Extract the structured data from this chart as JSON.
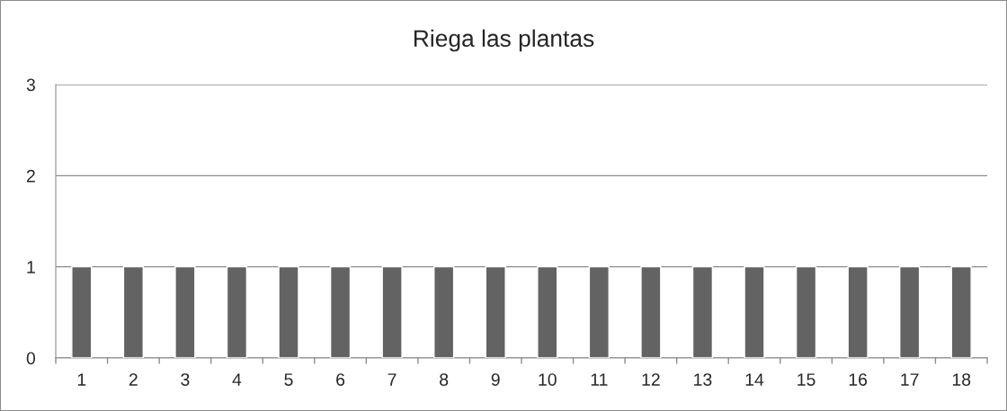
{
  "chart_data": {
    "type": "bar",
    "title": "Riega las plantas",
    "categories": [
      "1",
      "2",
      "3",
      "4",
      "5",
      "6",
      "7",
      "8",
      "9",
      "10",
      "11",
      "12",
      "13",
      "14",
      "15",
      "16",
      "17",
      "18"
    ],
    "values": [
      1,
      1,
      1,
      1,
      1,
      1,
      1,
      1,
      1,
      1,
      1,
      1,
      1,
      1,
      1,
      1,
      1,
      1
    ],
    "color": "#636363",
    "ylim": [
      0,
      3
    ],
    "yticks": [
      0,
      1,
      2,
      3
    ],
    "grid": "y",
    "legend": false
  }
}
